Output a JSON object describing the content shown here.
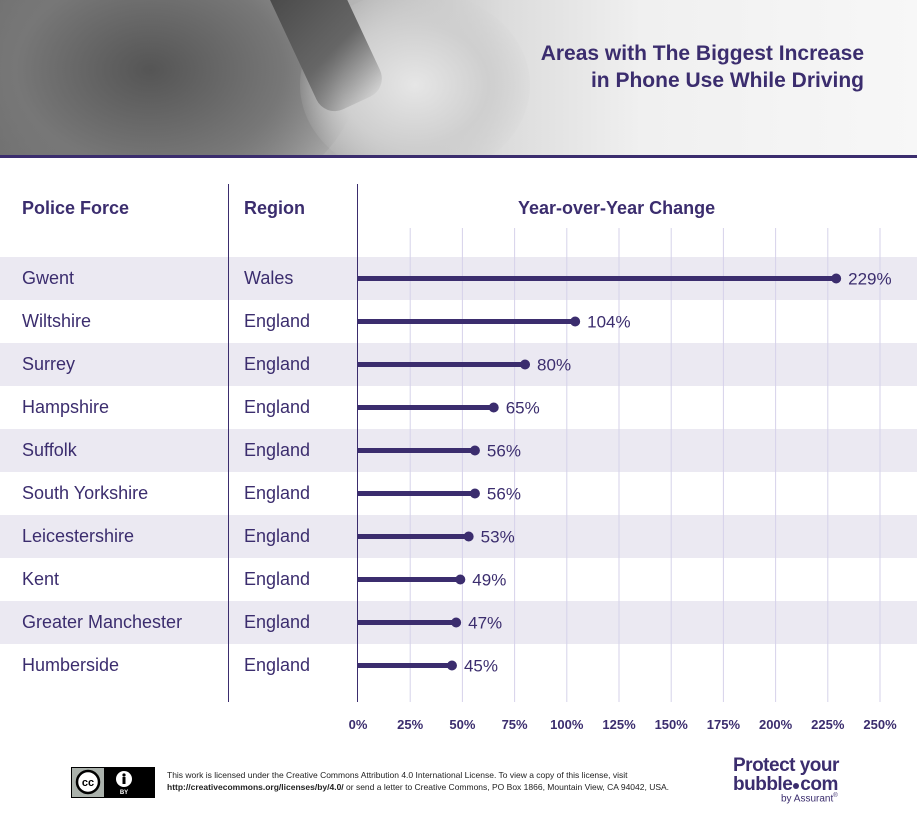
{
  "title_lines": [
    "Areas with The Biggest Increase",
    "in Phone Use While Driving"
  ],
  "headers": {
    "force": "Police Force",
    "region": "Region",
    "change": "Year-over-Year Change"
  },
  "rows": [
    {
      "force": "Gwent",
      "region": "Wales"
    },
    {
      "force": "Wiltshire",
      "region": "England"
    },
    {
      "force": "Surrey",
      "region": "England"
    },
    {
      "force": "Hampshire",
      "region": "England"
    },
    {
      "force": "Suffolk",
      "region": "England"
    },
    {
      "force": "South Yorkshire",
      "region": "England"
    },
    {
      "force": "Leicestershire",
      "region": "England"
    },
    {
      "force": "Kent",
      "region": "England"
    },
    {
      "force": "Greater Manchester",
      "region": "England"
    },
    {
      "force": "Humberside",
      "region": "England"
    }
  ],
  "chart_data": {
    "type": "bar",
    "orientation": "horizontal",
    "title": "Year-over-Year Change",
    "categories": [
      "Gwent",
      "Wiltshire",
      "Surrey",
      "Hampshire",
      "Suffolk",
      "South Yorkshire",
      "Leicestershire",
      "Kent",
      "Greater Manchester",
      "Humberside"
    ],
    "values": [
      229,
      104,
      80,
      65,
      56,
      56,
      53,
      49,
      47,
      45
    ],
    "value_labels": [
      "229%",
      "104%",
      "80%",
      "65%",
      "56%",
      "56%",
      "53%",
      "49%",
      "47%",
      "45%"
    ],
    "xlim": [
      0,
      250
    ],
    "x_ticks": [
      0,
      25,
      50,
      75,
      100,
      125,
      150,
      175,
      200,
      225,
      250
    ],
    "x_tick_labels": [
      "0%",
      "25%",
      "50%",
      "75%",
      "100%",
      "125%",
      "150%",
      "175%",
      "200%",
      "225%",
      "250%"
    ],
    "grid": true,
    "bar_color": "#3b2d6e",
    "gridline_color": "#d6d2ea",
    "band_color": "#ebe9f2"
  },
  "footer": {
    "license_line1": "This work is licensed under the Creative Commons Attribution 4.0 International License. To view a copy of this license, visit",
    "license_url": "http://creativecommons.org/licenses/by/4.0/",
    "license_line2_rest": " or send a letter to Creative Commons, PO Box 1866, Mountain View, CA 94042, USA.",
    "cc_badge": {
      "cc": "cc",
      "by": "BY"
    },
    "brand_line1": "Protect your",
    "brand_line2": "bubble",
    "brand_line2_suffix": "com",
    "brand_sub": "by Assurant",
    "brand_reg": "®"
  },
  "colors": {
    "primary": "#3b2d6e"
  }
}
